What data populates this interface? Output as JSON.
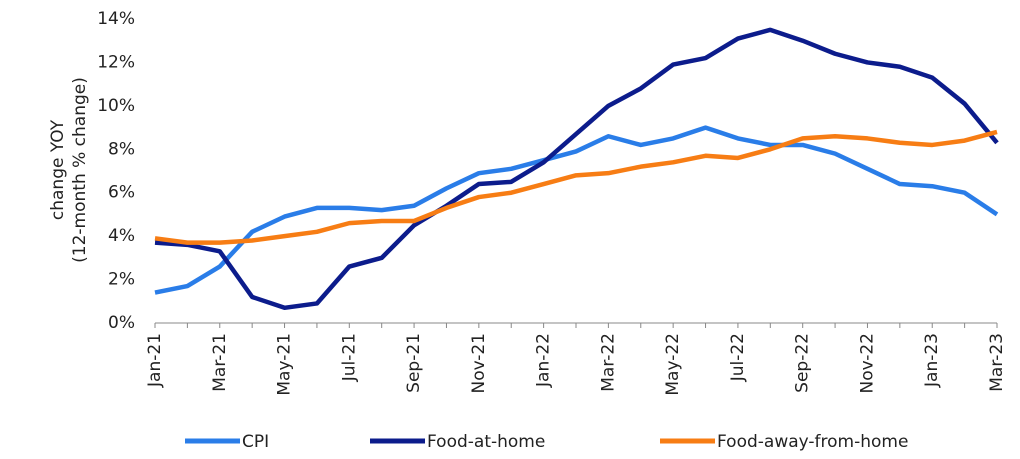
{
  "chart_data": {
    "type": "line",
    "ylabel": [
      "change YOY",
      "(12-month % change)"
    ],
    "categories": [
      "Jan-21",
      null,
      "Mar-21",
      null,
      "May-21",
      null,
      "Jul-21",
      null,
      "Sep-21",
      null,
      "Nov-21",
      null,
      "Jan-22",
      null,
      "Mar-22",
      null,
      "May-22",
      null,
      "Jul-22",
      null,
      "Sep-22",
      null,
      "Nov-22",
      null,
      "Jan-23",
      null,
      "Mar-23"
    ],
    "series": [
      {
        "name": "CPI",
        "color": "#2a7de8",
        "values": [
          1.4,
          1.7,
          2.6,
          4.2,
          4.9,
          5.3,
          5.3,
          5.2,
          5.4,
          6.2,
          6.9,
          7.1,
          7.5,
          7.9,
          8.6,
          8.2,
          8.5,
          9.0,
          8.5,
          8.2,
          8.2,
          7.8,
          7.1,
          6.4,
          6.3,
          6.0,
          5.0
        ]
      },
      {
        "name": "Food-at-home",
        "color": "#0c1c8c",
        "values": [
          3.7,
          3.6,
          3.3,
          1.2,
          0.7,
          0.9,
          2.6,
          3.0,
          4.5,
          5.4,
          6.4,
          6.5,
          7.4,
          8.7,
          10.0,
          10.8,
          11.9,
          12.2,
          13.1,
          13.5,
          13.0,
          12.4,
          12.0,
          11.8,
          11.3,
          10.1,
          8.3
        ]
      },
      {
        "name": "Food-away-from-home",
        "color": "#f77d14",
        "values": [
          3.9,
          3.7,
          3.7,
          3.8,
          4.0,
          4.2,
          4.6,
          4.7,
          4.7,
          5.3,
          5.8,
          6.0,
          6.4,
          6.8,
          6.9,
          7.2,
          7.4,
          7.7,
          7.6,
          8.0,
          8.5,
          8.6,
          8.5,
          8.3,
          8.2,
          8.4,
          8.8
        ]
      }
    ],
    "ylim": [
      0,
      14
    ],
    "yticks": [
      {
        "value": 0,
        "label": "0%"
      },
      {
        "value": 2,
        "label": "2%"
      },
      {
        "value": 4,
        "label": "4%"
      },
      {
        "value": 6,
        "label": "6%"
      },
      {
        "value": 8,
        "label": "8%"
      },
      {
        "value": 10,
        "label": "10%"
      },
      {
        "value": 12,
        "label": "12%"
      },
      {
        "value": 14,
        "label": "14%"
      }
    ],
    "grid": false
  }
}
